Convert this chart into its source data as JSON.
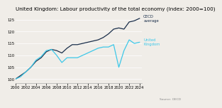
{
  "title": "United Kingdom: Labour productivity of the total economy (Index: 2000=100)",
  "title_fontsize": 5.2,
  "xlim": [
    2000,
    2024.5
  ],
  "ylim": [
    98.5,
    128
  ],
  "yticks": [
    100,
    105,
    110,
    115,
    120,
    125
  ],
  "xticks": [
    2000,
    2002,
    2004,
    2006,
    2008,
    2010,
    2012,
    2014,
    2016,
    2018,
    2020,
    2022,
    2024
  ],
  "background_color": "#f0ede8",
  "oecd_color": "#1a2e4a",
  "uk_color": "#3ec8e8",
  "source_text": "Source: OECD",
  "oecd_label": "OECD\naverage",
  "uk_label": "United\nKingdom",
  "oecd_data": {
    "years": [
      2000,
      2001,
      2002,
      2003,
      2004,
      2005,
      2006,
      2007,
      2008,
      2009,
      2010,
      2011,
      2012,
      2013,
      2014,
      2015,
      2016,
      2017,
      2018,
      2019,
      2020,
      2021,
      2022,
      2023,
      2024
    ],
    "values": [
      100,
      101.5,
      103,
      105,
      107.5,
      109,
      111.5,
      112.5,
      112,
      111,
      113,
      114.5,
      114.5,
      115,
      115.5,
      116,
      116.5,
      117.5,
      119,
      121,
      121.5,
      121,
      124,
      124.5,
      125.5
    ]
  },
  "uk_data": {
    "years": [
      2000,
      2001,
      2002,
      2003,
      2004,
      2005,
      2006,
      2007,
      2008,
      2009,
      2010,
      2011,
      2012,
      2013,
      2014,
      2015,
      2016,
      2017,
      2018,
      2019,
      2020,
      2021,
      2022,
      2023,
      2024
    ],
    "values": [
      100,
      101,
      103,
      105,
      108,
      109.5,
      112,
      112.5,
      110,
      107,
      109,
      109,
      109,
      110,
      111,
      112,
      113,
      113.5,
      113.5,
      114.5,
      105,
      112,
      116.5,
      115,
      115.5
    ]
  }
}
